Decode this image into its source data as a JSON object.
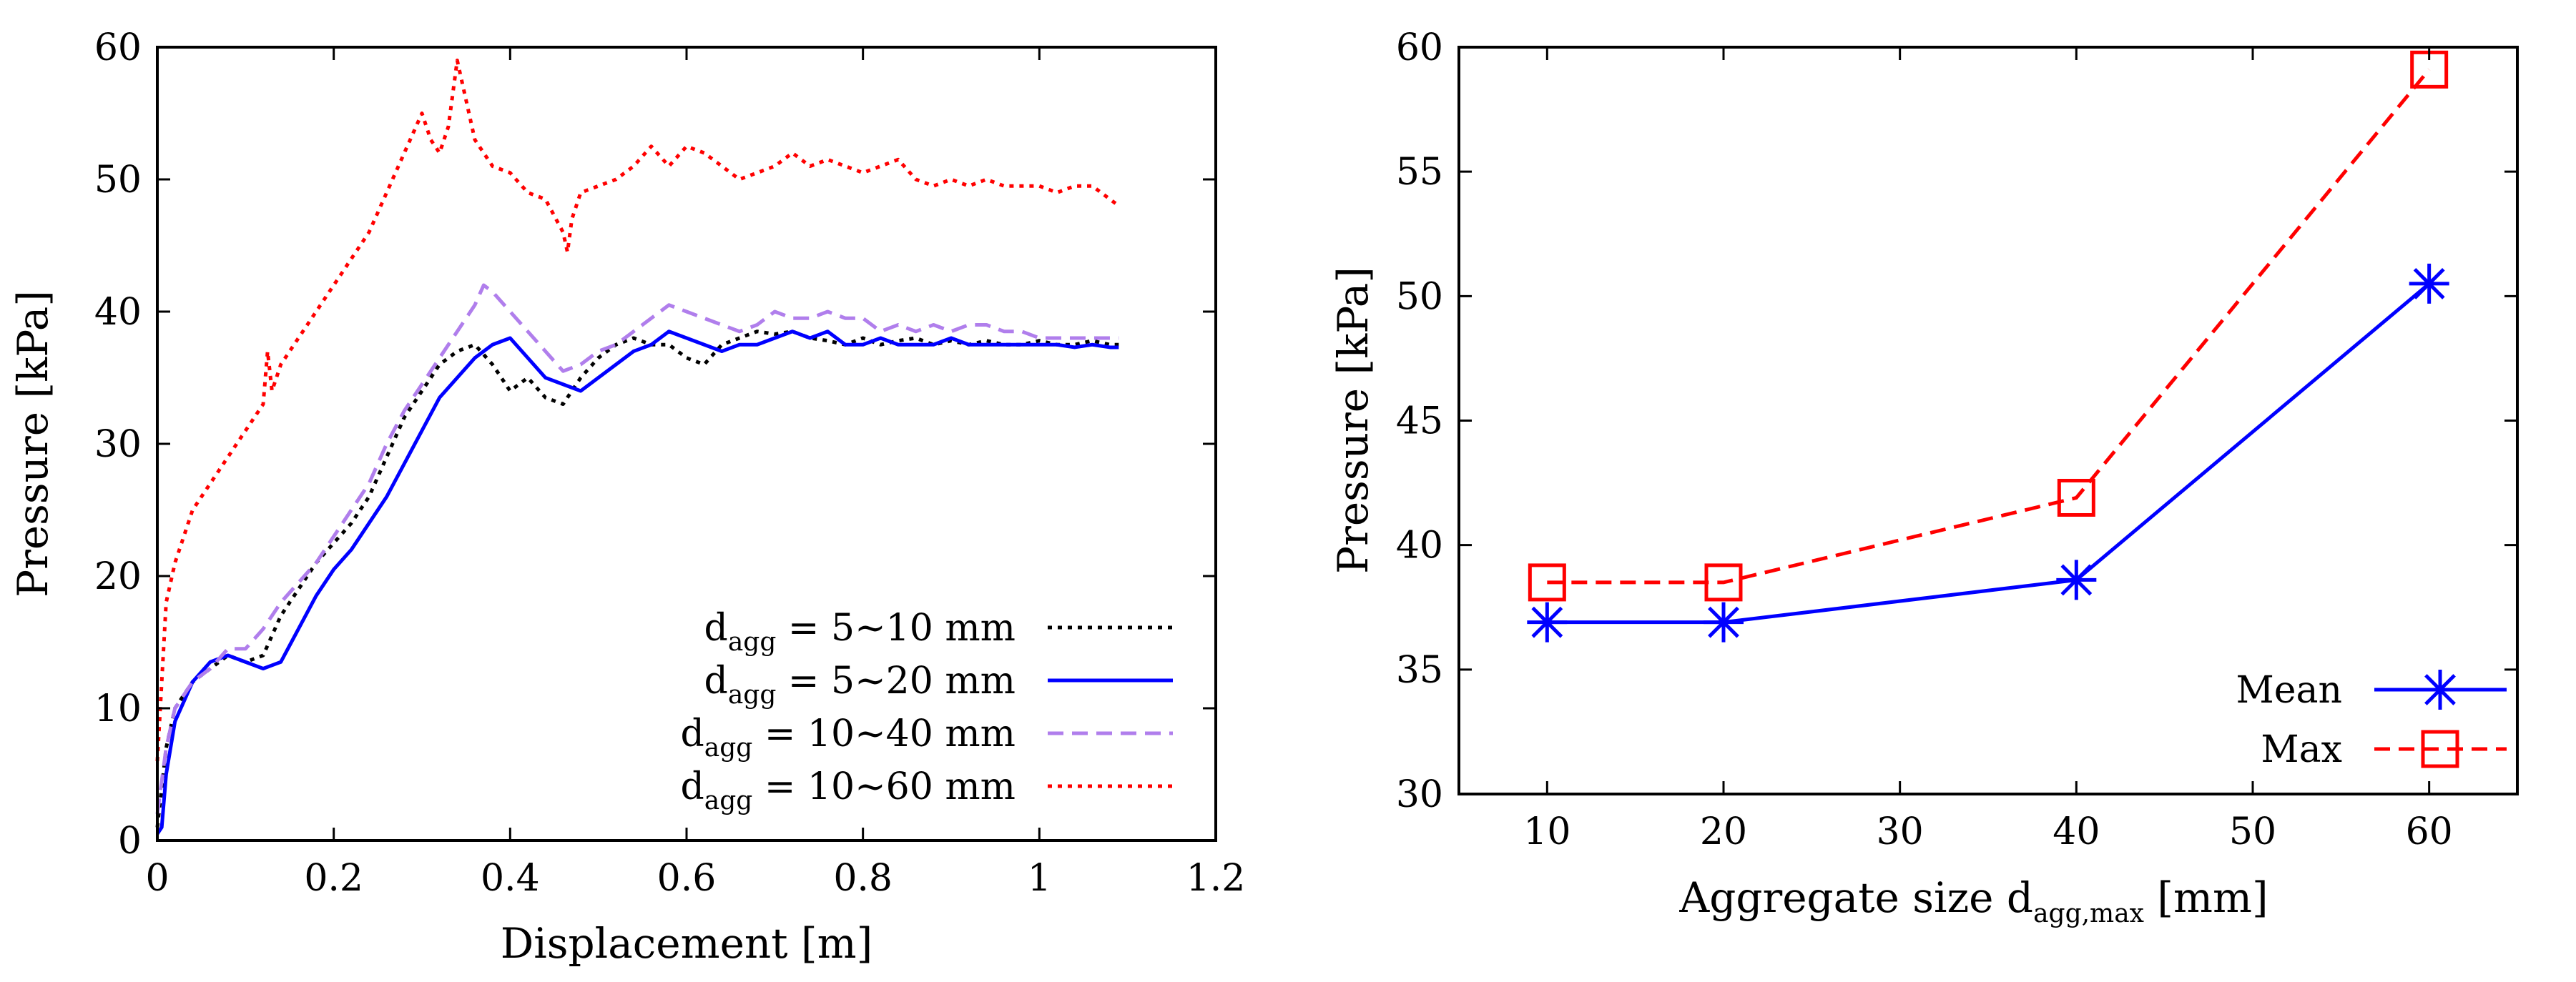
{
  "chart_data": [
    {
      "type": "line",
      "xlabel": "Displacement [m]",
      "ylabel": "Pressure [kPa]",
      "xlim": [
        0,
        1.2
      ],
      "ylim": [
        0,
        60
      ],
      "xticks": [
        "0",
        "0.2",
        "0.4",
        "0.6",
        "0.8",
        "1",
        "1.2"
      ],
      "yticks": [
        "0",
        "10",
        "20",
        "30",
        "40",
        "50",
        "60"
      ],
      "legend_position": "bottom-right",
      "series": [
        {
          "name": "d_agg = 5~10 mm",
          "label_main": "d",
          "label_sub": "agg",
          "label_rest": " = 5~10 mm",
          "color": "#000000",
          "dash": "dotted",
          "x": [
            0,
            0.01,
            0.02,
            0.04,
            0.06,
            0.08,
            0.1,
            0.12,
            0.14,
            0.16,
            0.18,
            0.2,
            0.22,
            0.24,
            0.26,
            0.28,
            0.3,
            0.32,
            0.34,
            0.36,
            0.38,
            0.4,
            0.42,
            0.44,
            0.46,
            0.48,
            0.5,
            0.52,
            0.54,
            0.56,
            0.58,
            0.6,
            0.62,
            0.64,
            0.66,
            0.68,
            0.7,
            0.72,
            0.74,
            0.76,
            0.78,
            0.8,
            0.82,
            0.84,
            0.86,
            0.88,
            0.9,
            0.92,
            0.94,
            0.96,
            0.98,
            1.0,
            1.02,
            1.04,
            1.06,
            1.08,
            1.09
          ],
          "y": [
            1,
            7,
            10,
            12,
            13,
            14,
            13.5,
            14,
            17,
            19,
            21,
            22.5,
            24,
            26,
            29,
            32,
            34,
            36,
            37,
            37.5,
            36,
            34,
            35,
            33.5,
            33,
            35,
            36.5,
            37.5,
            38,
            37.5,
            37.5,
            36.5,
            36,
            37.5,
            38,
            38.5,
            38.3,
            38.5,
            38,
            37.8,
            37.5,
            38,
            37.5,
            37.8,
            38,
            37.5,
            37.8,
            37.5,
            37.8,
            37.5,
            37.5,
            37.8,
            37.5,
            37.5,
            37.8,
            37.5,
            37.5
          ]
        },
        {
          "name": "d_agg = 5~20 mm",
          "label_main": "d",
          "label_sub": "agg",
          "label_rest": " = 5~20 mm",
          "color": "#0000ff",
          "dash": "solid",
          "x": [
            0,
            0.005,
            0.01,
            0.02,
            0.04,
            0.06,
            0.08,
            0.1,
            0.12,
            0.14,
            0.16,
            0.18,
            0.2,
            0.22,
            0.24,
            0.26,
            0.28,
            0.3,
            0.32,
            0.34,
            0.36,
            0.38,
            0.4,
            0.42,
            0.44,
            0.46,
            0.48,
            0.5,
            0.52,
            0.54,
            0.56,
            0.58,
            0.6,
            0.62,
            0.64,
            0.66,
            0.68,
            0.7,
            0.72,
            0.74,
            0.76,
            0.78,
            0.8,
            0.82,
            0.84,
            0.86,
            0.88,
            0.9,
            0.92,
            0.94,
            0.96,
            0.98,
            1.0,
            1.02,
            1.04,
            1.06,
            1.08,
            1.09
          ],
          "y": [
            0.5,
            1,
            5,
            9,
            12,
            13.5,
            14,
            13.5,
            13,
            13.5,
            16,
            18.5,
            20.5,
            22,
            24,
            26,
            28.5,
            31,
            33.5,
            35,
            36.5,
            37.5,
            38,
            36.5,
            35,
            34.5,
            34,
            35,
            36,
            37,
            37.5,
            38.5,
            38,
            37.5,
            37,
            37.5,
            37.5,
            38,
            38.5,
            38,
            38.5,
            37.5,
            37.5,
            38,
            37.5,
            37.5,
            37.5,
            38,
            37.5,
            37.5,
            37.5,
            37.5,
            37.5,
            37.5,
            37.3,
            37.5,
            37.3,
            37.3
          ]
        },
        {
          "name": "d_agg = 10~40 mm",
          "label_main": "d",
          "label_sub": "agg",
          "label_rest": " = 10~40 mm",
          "color": "#b07eec",
          "dash": "dashed",
          "x": [
            0,
            0.01,
            0.02,
            0.04,
            0.06,
            0.08,
            0.1,
            0.12,
            0.14,
            0.16,
            0.18,
            0.2,
            0.22,
            0.24,
            0.26,
            0.28,
            0.3,
            0.32,
            0.34,
            0.36,
            0.37,
            0.38,
            0.4,
            0.42,
            0.44,
            0.46,
            0.48,
            0.5,
            0.52,
            0.54,
            0.56,
            0.58,
            0.6,
            0.62,
            0.64,
            0.66,
            0.68,
            0.7,
            0.72,
            0.74,
            0.76,
            0.78,
            0.8,
            0.82,
            0.84,
            0.86,
            0.88,
            0.9,
            0.92,
            0.94,
            0.96,
            0.98,
            1.0,
            1.02,
            1.04,
            1.06,
            1.08,
            1.09
          ],
          "y": [
            2,
            7,
            10,
            12,
            13,
            14.5,
            14.5,
            16,
            18,
            19.5,
            21,
            23,
            25,
            27,
            30,
            32.5,
            34.5,
            36.5,
            38.5,
            40.5,
            42,
            41.5,
            40,
            38.5,
            37,
            35.5,
            36,
            37,
            37.5,
            38.5,
            39.5,
            40.5,
            40,
            39.5,
            39,
            38.5,
            39,
            40,
            39.5,
            39.5,
            40,
            39.5,
            39.5,
            38.5,
            39,
            38.5,
            39,
            38.5,
            39,
            39,
            38.5,
            38.5,
            38,
            38,
            38,
            38,
            38,
            38
          ]
        },
        {
          "name": "d_agg = 10~60 mm",
          "label_main": "d",
          "label_sub": "agg",
          "label_rest": " = 10~60 mm",
          "color": "#ff0000",
          "dash": "dotted",
          "x": [
            0,
            0.005,
            0.01,
            0.02,
            0.03,
            0.04,
            0.06,
            0.08,
            0.1,
            0.12,
            0.125,
            0.13,
            0.14,
            0.16,
            0.18,
            0.2,
            0.22,
            0.24,
            0.26,
            0.28,
            0.3,
            0.31,
            0.32,
            0.33,
            0.34,
            0.35,
            0.36,
            0.38,
            0.4,
            0.42,
            0.44,
            0.46,
            0.465,
            0.47,
            0.48,
            0.5,
            0.52,
            0.54,
            0.56,
            0.58,
            0.6,
            0.62,
            0.64,
            0.66,
            0.68,
            0.7,
            0.72,
            0.74,
            0.76,
            0.78,
            0.8,
            0.82,
            0.84,
            0.86,
            0.88,
            0.9,
            0.92,
            0.94,
            0.96,
            0.98,
            1.0,
            1.02,
            1.04,
            1.06,
            1.08,
            1.09
          ],
          "y": [
            6,
            12,
            18,
            21,
            23,
            25,
            27,
            29,
            31,
            33,
            37,
            34,
            36,
            38,
            40,
            42,
            44,
            46,
            49,
            52,
            55,
            53,
            52,
            54,
            59,
            56,
            53,
            51,
            50.5,
            49,
            48.5,
            46,
            44.5,
            47,
            49,
            49.5,
            50,
            51,
            52.5,
            51,
            52.5,
            52,
            51,
            50,
            50.5,
            51,
            52,
            51,
            51.5,
            51,
            50.5,
            51,
            51.5,
            50,
            49.5,
            50,
            49.5,
            50,
            49.5,
            49.5,
            49.5,
            49,
            49.5,
            49.5,
            48.5,
            48
          ]
        }
      ]
    },
    {
      "type": "line",
      "xlabel_main": "Aggregate size d",
      "xlabel_sub": "agg,max",
      "xlabel_rest": " [mm]",
      "ylabel": "Pressure [kPa]",
      "xlim": [
        5,
        65
      ],
      "ylim": [
        30,
        60
      ],
      "xticks": [
        "10",
        "20",
        "30",
        "40",
        "50",
        "60"
      ],
      "yticks": [
        "30",
        "35",
        "40",
        "45",
        "50",
        "55",
        "60"
      ],
      "legend_position": "bottom-right",
      "series": [
        {
          "name": "Mean",
          "color": "#0000ff",
          "dash": "solid",
          "marker": "asterisk",
          "x": [
            10,
            20,
            40,
            60
          ],
          "y": [
            36.9,
            36.9,
            38.6,
            50.5
          ]
        },
        {
          "name": "Max",
          "color": "#ff0000",
          "dash": "dashed",
          "marker": "square",
          "x": [
            10,
            20,
            40,
            60
          ],
          "y": [
            38.5,
            38.5,
            41.9,
            59.1
          ]
        }
      ]
    }
  ]
}
